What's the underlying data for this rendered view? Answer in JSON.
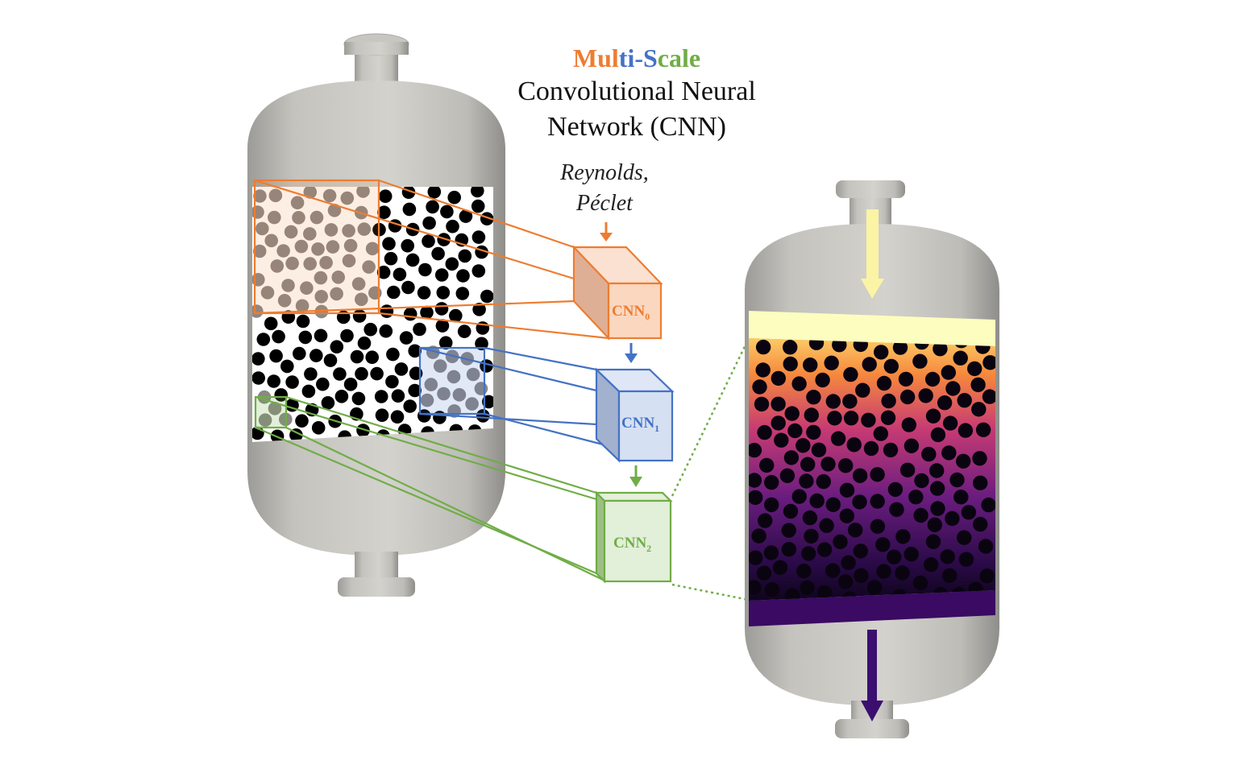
{
  "title": {
    "part_mul": "Mul",
    "part_ti": "ti",
    "part_dash": "-",
    "part_s": "S",
    "part_cale": "cale",
    "line2": "Convolutional Neural",
    "line3": "Network (CNN)"
  },
  "inputs": {
    "line1": "Reynolds,",
    "line2": "Péclet"
  },
  "cnn_blocks": [
    {
      "name": "CNN",
      "index": "0",
      "color": "#ED7D31"
    },
    {
      "name": "CNN",
      "index": "1",
      "color": "#4472C4"
    },
    {
      "name": "CNN",
      "index": "2",
      "color": "#70AD47"
    }
  ],
  "colors": {
    "orange": "#ED7D31",
    "blue": "#4472C4",
    "green": "#70AD47",
    "vessel": "#c9c8c3",
    "inlet_arrow": "#fbf4a4",
    "outlet_arrow": "#3b0f70",
    "outlet_band": "#3b0a63"
  }
}
